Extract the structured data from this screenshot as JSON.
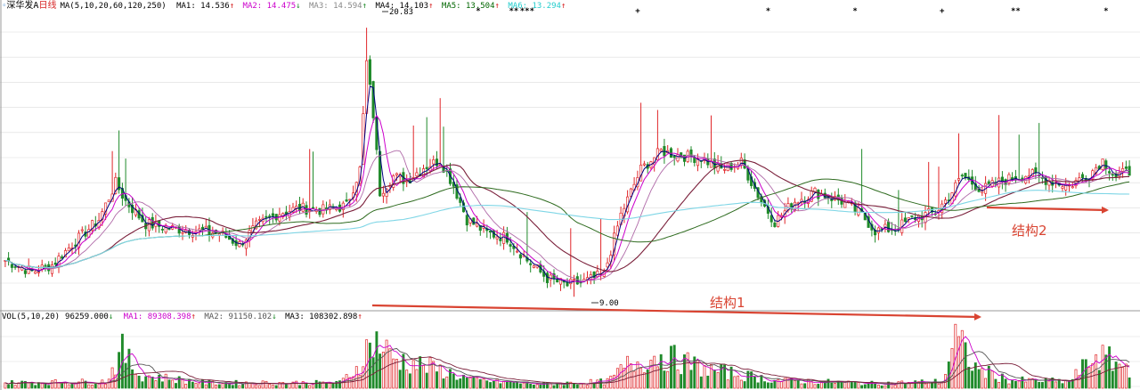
{
  "header": {
    "stock_name": "深华发A",
    "period": "日线",
    "ma_params": "MA(5,10,20,60,120,250)",
    "ma_items": [
      {
        "label": "MA1: 14.536",
        "arrow": "↑",
        "color": "#000000"
      },
      {
        "label": "MA2: 14.475",
        "arrow": "↓",
        "color": "#cc00cc"
      },
      {
        "label": "MA3: 14.594",
        "arrow": "↑",
        "color": "#888888"
      },
      {
        "label": "MA4: 14.103",
        "arrow": "↑",
        "color": "#000000"
      },
      {
        "label": "MA5: 13.504",
        "arrow": "↑",
        "color": "#006600"
      },
      {
        "label": "MA6: 13.294",
        "arrow": "↑",
        "color": "#22cccc"
      }
    ]
  },
  "volume_header": {
    "params": "VOL(5,10,20)",
    "vol_value": "96259.000",
    "vol_arrow": "↓",
    "ma_items": [
      {
        "label": "MA1: 89308.398",
        "arrow": "↑",
        "color": "#cc00cc"
      },
      {
        "label": "MA2: 91150.102",
        "arrow": "↓",
        "color": "#555555"
      },
      {
        "label": "MA3: 108302.898",
        "arrow": "↑",
        "color": "#000000"
      }
    ]
  },
  "price_labels": {
    "high": "20.83",
    "low": "9.00"
  },
  "annotations": {
    "structure1": "结构1",
    "structure2": "结构2"
  },
  "event_marks": [
    "**",
    "***",
    "+",
    "*",
    "*",
    "+",
    "**",
    "*"
  ],
  "colors": {
    "up": "#e0262a",
    "down": "#1f8a2a",
    "ma_fast": "#000080",
    "ma_mid": "#cc00cc",
    "ma_slow": "#7a1f3a",
    "ma_120": "#2e6b1f",
    "ma_250": "#7fd6e6",
    "arrow": "#d94432",
    "grid": "#dcdcdc"
  },
  "chart_data": {
    "type": "candlestick",
    "ylim": [
      8.5,
      21.5
    ],
    "grid": true,
    "close_path": [
      [
        0,
        10.6
      ],
      [
        8,
        10.1
      ],
      [
        14,
        10.4
      ],
      [
        20,
        11.3
      ],
      [
        28,
        12.4
      ],
      [
        33,
        14.0
      ],
      [
        36,
        13.2
      ],
      [
        42,
        12.2
      ],
      [
        50,
        12.0
      ],
      [
        58,
        11.9
      ],
      [
        64,
        11.8
      ],
      [
        70,
        11.3
      ],
      [
        75,
        12.1
      ],
      [
        82,
        12.7
      ],
      [
        88,
        12.9
      ],
      [
        95,
        12.8
      ],
      [
        102,
        13.0
      ],
      [
        106,
        14.6
      ],
      [
        108,
        19.3
      ],
      [
        110,
        17.0
      ],
      [
        112,
        13.6
      ],
      [
        116,
        14.3
      ],
      [
        120,
        14.1
      ],
      [
        125,
        14.7
      ],
      [
        130,
        15.0
      ],
      [
        134,
        13.9
      ],
      [
        138,
        12.4
      ],
      [
        144,
        11.8
      ],
      [
        150,
        11.6
      ],
      [
        156,
        10.6
      ],
      [
        162,
        9.8
      ],
      [
        168,
        9.5
      ],
      [
        174,
        9.7
      ],
      [
        179,
        10.0
      ],
      [
        184,
        12.6
      ],
      [
        190,
        14.6
      ],
      [
        196,
        15.4
      ],
      [
        202,
        15.2
      ],
      [
        208,
        15.1
      ],
      [
        214,
        14.6
      ],
      [
        220,
        14.9
      ],
      [
        226,
        13.2
      ],
      [
        230,
        12.3
      ],
      [
        236,
        13.2
      ],
      [
        242,
        13.6
      ],
      [
        250,
        13.2
      ],
      [
        256,
        12.6
      ],
      [
        260,
        11.9
      ],
      [
        266,
        12.0
      ],
      [
        272,
        12.5
      ],
      [
        278,
        12.7
      ],
      [
        282,
        13.4
      ],
      [
        286,
        14.3
      ],
      [
        292,
        13.7
      ],
      [
        298,
        14.1
      ],
      [
        306,
        14.4
      ],
      [
        312,
        14.1
      ],
      [
        318,
        13.9
      ],
      [
        324,
        14.4
      ],
      [
        328,
        15.0
      ],
      [
        332,
        14.3
      ],
      [
        336,
        14.5
      ]
    ],
    "volume_bursts": [
      [
        0,
        0.08
      ],
      [
        30,
        0.1
      ],
      [
        35,
        0.55
      ],
      [
        40,
        0.2
      ],
      [
        60,
        0.08
      ],
      [
        100,
        0.08
      ],
      [
        105,
        0.3
      ],
      [
        110,
        0.75
      ],
      [
        116,
        0.45
      ],
      [
        128,
        0.3
      ],
      [
        140,
        0.12
      ],
      [
        160,
        0.06
      ],
      [
        180,
        0.1
      ],
      [
        186,
        0.35
      ],
      [
        196,
        0.5
      ],
      [
        210,
        0.28
      ],
      [
        230,
        0.12
      ],
      [
        260,
        0.07
      ],
      [
        280,
        0.1
      ],
      [
        284,
        0.75
      ],
      [
        290,
        0.3
      ],
      [
        300,
        0.12
      ],
      [
        318,
        0.1
      ],
      [
        326,
        0.5
      ],
      [
        336,
        0.3
      ]
    ]
  }
}
